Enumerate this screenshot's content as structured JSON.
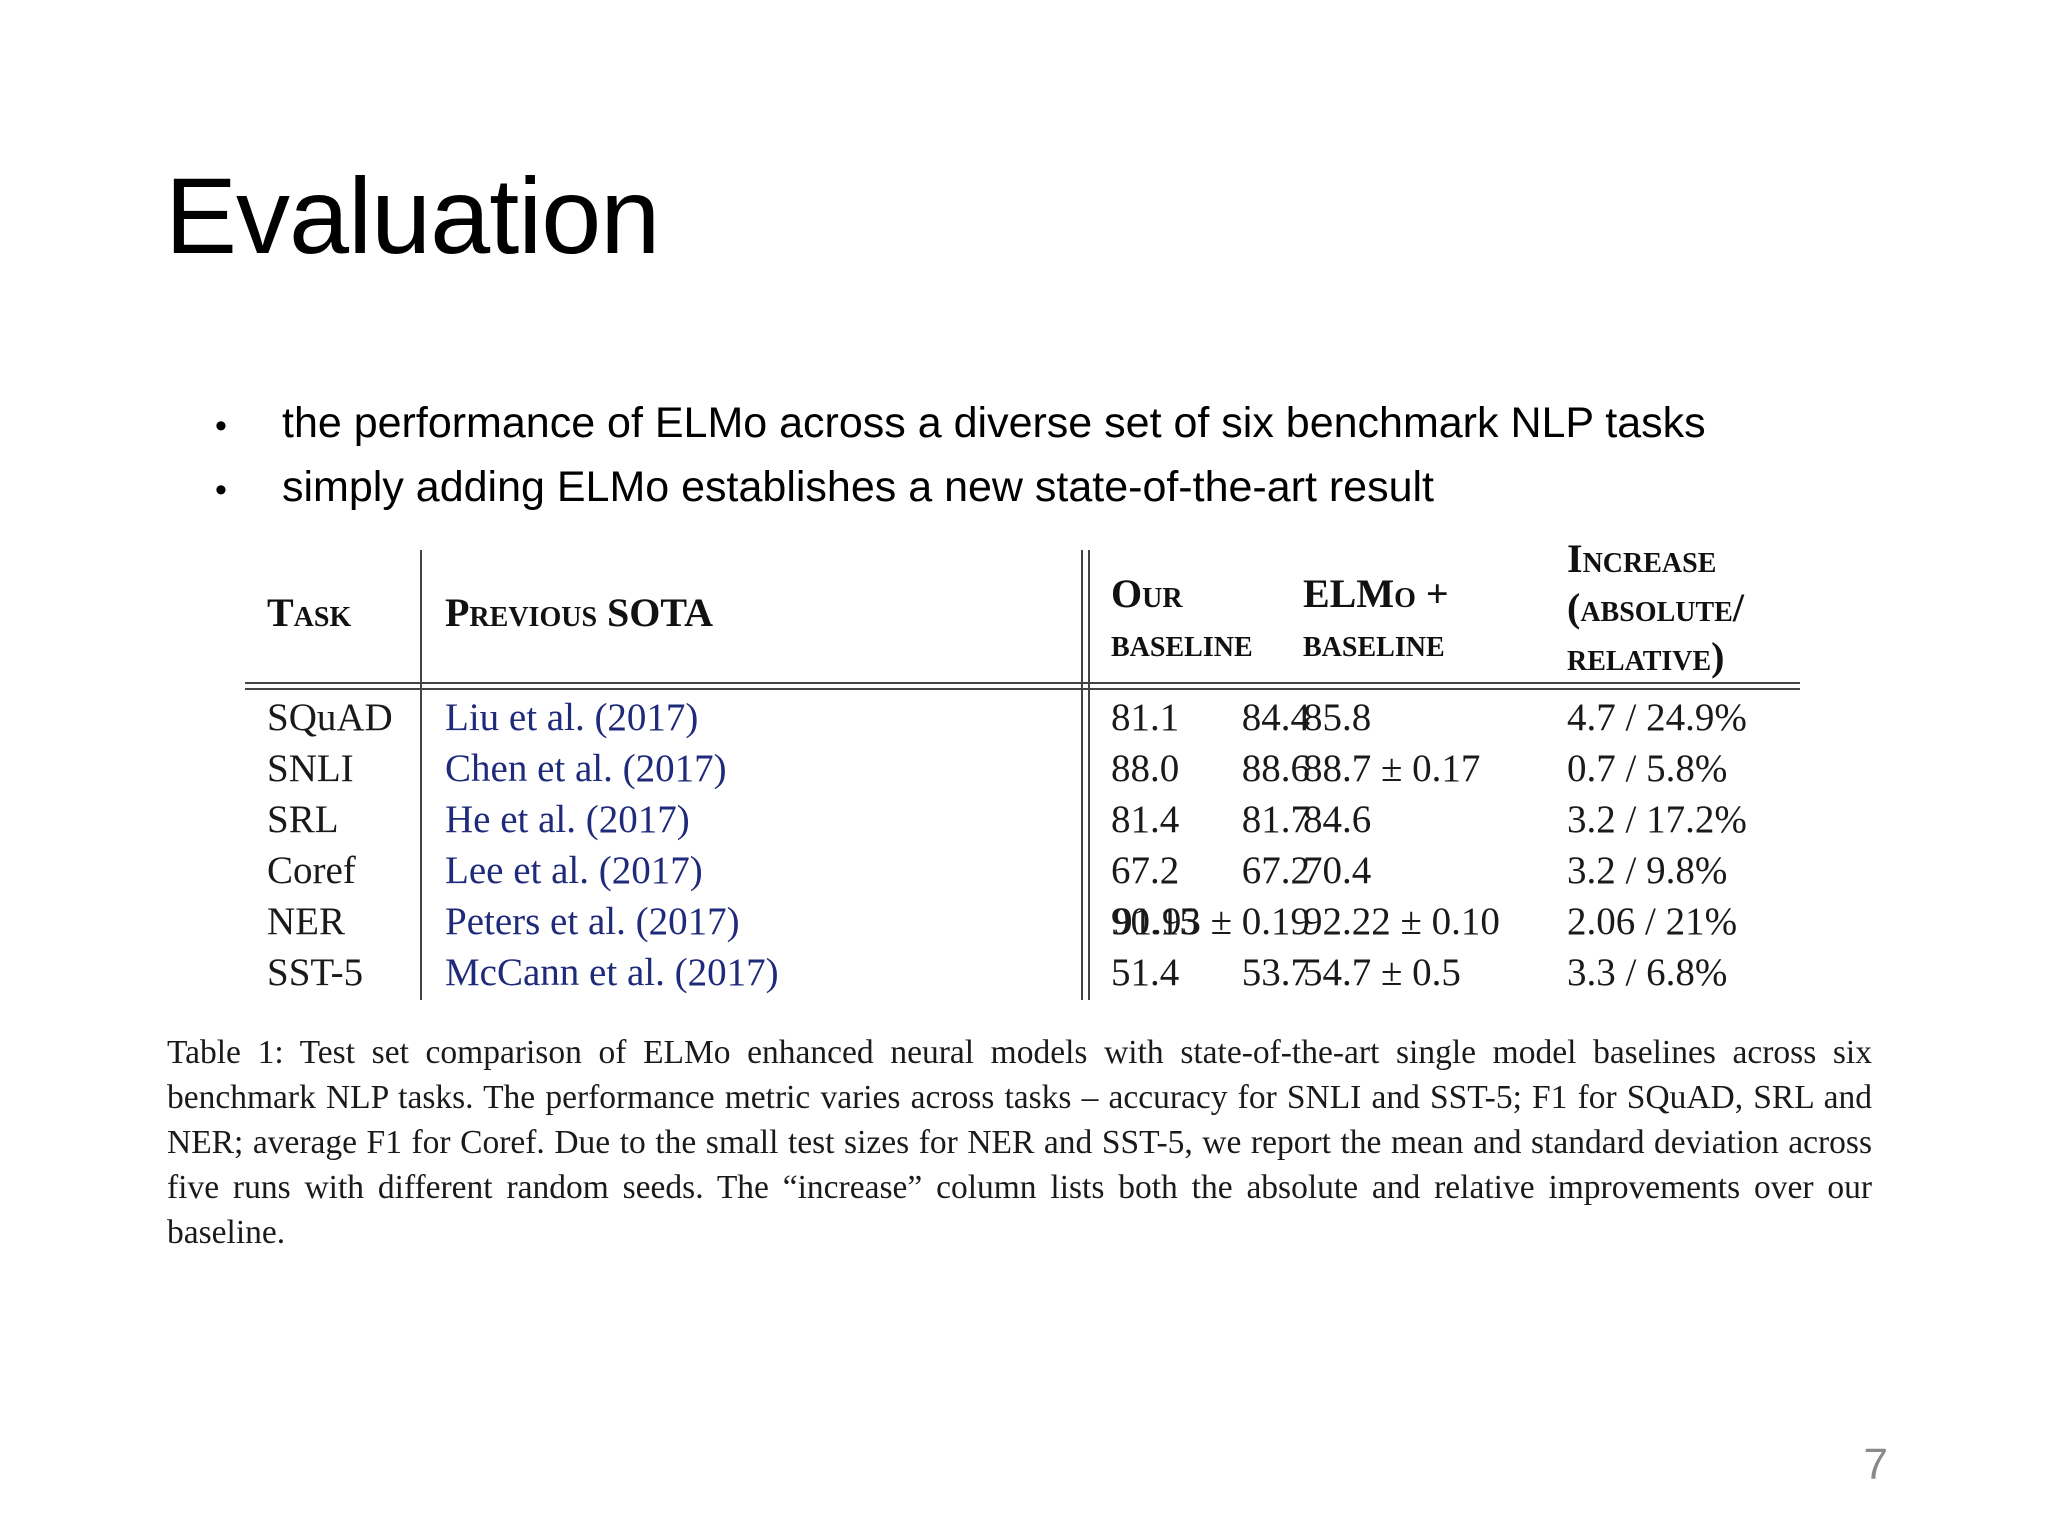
{
  "slide": {
    "title": "Evaluation",
    "bullets": [
      "the performance of ELMo across a diverse set of six benchmark NLP tasks",
      "simply adding ELMo establishes a new state-of-the-art result"
    ],
    "page_number": "7"
  },
  "table": {
    "headers": {
      "task": "Task",
      "previous_sota": "Previous SOTA",
      "our_baseline_line1": "Our",
      "our_baseline_line2": "baseline",
      "elmo_line1": "ELMo +",
      "elmo_line2": "baseline",
      "increase_line1": "Increase",
      "increase_line2": "(absolute/",
      "increase_line3": "relative)"
    },
    "rows": [
      {
        "task": "SQuAD",
        "prev": "Liu et al. (2017)",
        "sota": "84.4",
        "baseline": "81.1",
        "elmo": "85.8",
        "increase": "4.7 / 24.9%"
      },
      {
        "task": "SNLI",
        "prev": "Chen et al. (2017)",
        "sota": "88.6",
        "baseline": "88.0",
        "elmo": "88.7 ± 0.17",
        "increase": "0.7 / 5.8%"
      },
      {
        "task": "SRL",
        "prev": "He et al. (2017)",
        "sota": "81.7",
        "baseline": "81.4",
        "elmo": "84.6",
        "increase": "3.2 / 17.2%"
      },
      {
        "task": "Coref",
        "prev": "Lee et al. (2017)",
        "sota": "67.2",
        "baseline": "67.2",
        "elmo": "70.4",
        "increase": "3.2 / 9.8%"
      },
      {
        "task": "NER",
        "prev": "Peters et al. (2017)",
        "sota": "91.93 ± 0.19",
        "baseline": "90.15",
        "elmo": "92.22 ± 0.10",
        "increase": "2.06 / 21%"
      },
      {
        "task": "SST-5",
        "prev": "McCann et al. (2017)",
        "sota": "53.7",
        "baseline": "51.4",
        "elmo": "54.7 ± 0.5",
        "increase": "3.3 / 6.8%"
      }
    ],
    "caption": "Table 1: Test set comparison of ELMo enhanced neural models with state-of-the-art single model baselines across six benchmark NLP tasks. The performance metric varies across tasks – accuracy for SNLI and SST-5; F1 for SQuAD, SRL and NER; average F1 for Coref. Due to the small test sizes for NER and SST-5, we report the mean and standard deviation across five runs with different random seeds. The “increase” column lists both the absolute and relative improvements over our baseline."
  }
}
